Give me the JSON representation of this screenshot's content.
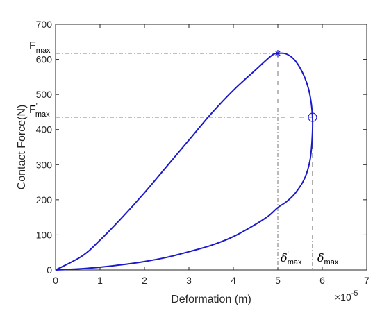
{
  "chart_data": {
    "type": "line",
    "xlabel": "Deformation (m)",
    "ylabel": "Contact Force(N)",
    "x_exponent_label": "×10",
    "x_exponent_power": "-5",
    "xlim": [
      0,
      7
    ],
    "ylim": [
      0,
      700
    ],
    "xticks": [
      0,
      1,
      2,
      3,
      4,
      5,
      6,
      7
    ],
    "yticks": [
      0,
      100,
      200,
      300,
      400,
      500,
      600,
      700
    ],
    "xtick_labels": [
      "0",
      "1",
      "2",
      "3",
      "4",
      "5",
      "6",
      "7"
    ],
    "ytick_labels": [
      "0",
      "100",
      "200",
      "300",
      "400",
      "500",
      "600",
      "700"
    ],
    "grid": false,
    "line_color": "#1a1acc",
    "series": [
      {
        "name": "",
        "x": [
          0,
          0.6,
          1.0,
          1.5,
          2.0,
          2.5,
          3.0,
          3.5,
          4.0,
          4.5,
          4.85,
          5.0,
          5.2,
          5.4,
          5.6,
          5.72,
          5.78,
          5.77,
          5.72,
          5.6,
          5.4,
          5.2,
          5.0,
          4.8,
          4.5,
          4.0,
          3.5,
          3.0,
          2.5,
          2.0,
          1.5,
          1.0,
          0.5,
          0
        ],
        "y": [
          0,
          40,
          85,
          150,
          220,
          295,
          370,
          445,
          512,
          570,
          610,
          617,
          615,
          595,
          550,
          500,
          435,
          370,
          310,
          260,
          220,
          195,
          178,
          155,
          130,
          95,
          70,
          52,
          36,
          24,
          15,
          8,
          3,
          0
        ]
      }
    ],
    "annotations": {
      "fmax": {
        "label": "F",
        "subscript": "max",
        "x": 5.0,
        "y": 617,
        "marker": "asterisk"
      },
      "fmax_prime": {
        "label": "F",
        "prime": "'",
        "subscript": "max",
        "x": 5.78,
        "y": 435,
        "marker": "circle"
      },
      "delta_max_prime": {
        "label": "δ",
        "prime": "'",
        "subscript": "max",
        "x": 5.0
      },
      "delta_max": {
        "label": "δ",
        "subscript": "max",
        "x": 5.78
      }
    }
  }
}
